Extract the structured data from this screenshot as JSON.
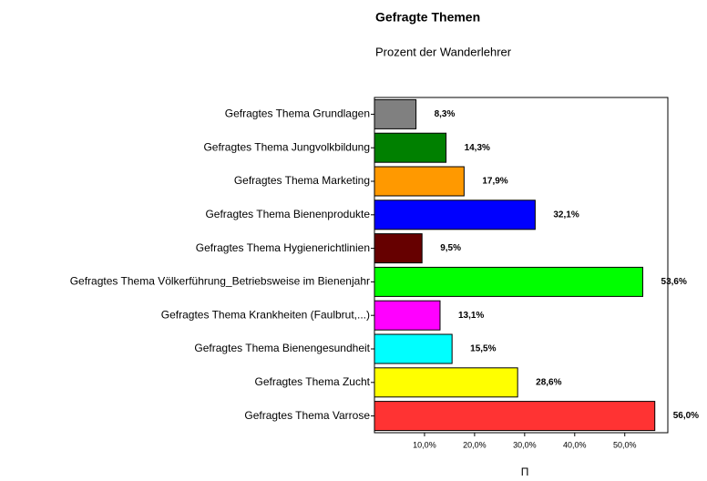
{
  "chart_data": {
    "type": "hbar",
    "title": "Gefragte Themen",
    "subtitle": "Prozent der Wanderlehrer",
    "categories": [
      "Gefragtes Thema Grundlagen",
      "Gefragtes Thema Jungvolkbildung",
      "Gefragtes Thema Marketing",
      "Gefragtes Thema Bienenprodukte",
      "Gefragtes Thema Hygienerichtlinien",
      "Gefragtes Thema Völkerführung_Betriebsweise im Bienenjahr",
      "Gefragtes Thema Krankheiten (Faulbrut,...)",
      "Gefragtes Thema Bienengesundheit",
      "Gefragtes Thema Zucht",
      "Gefragtes Thema Varrose"
    ],
    "values": [
      8.3,
      14.3,
      17.9,
      32.1,
      9.5,
      53.6,
      13.1,
      15.5,
      28.6,
      56.0
    ],
    "value_labels": [
      "8,3%",
      "14,3%",
      "17,9%",
      "32,1%",
      "9,5%",
      "53,6%",
      "13,1%",
      "15,5%",
      "28,6%",
      "56,0%"
    ],
    "colors": [
      "#808080",
      "#008000",
      "#ff9900",
      "#0000ff",
      "#660000",
      "#00ff00",
      "#ff00ff",
      "#00ffff",
      "#ffff00",
      "#ff3333"
    ],
    "xlim": [
      0,
      58.6
    ],
    "xticks": [
      {
        "value": 10,
        "label": "10,0%"
      },
      {
        "value": 20,
        "label": "20,0%"
      },
      {
        "value": 30,
        "label": "30,0%"
      },
      {
        "value": 40,
        "label": "40,0%"
      },
      {
        "value": 50,
        "label": "50,0%"
      }
    ],
    "xlabel": "П"
  }
}
